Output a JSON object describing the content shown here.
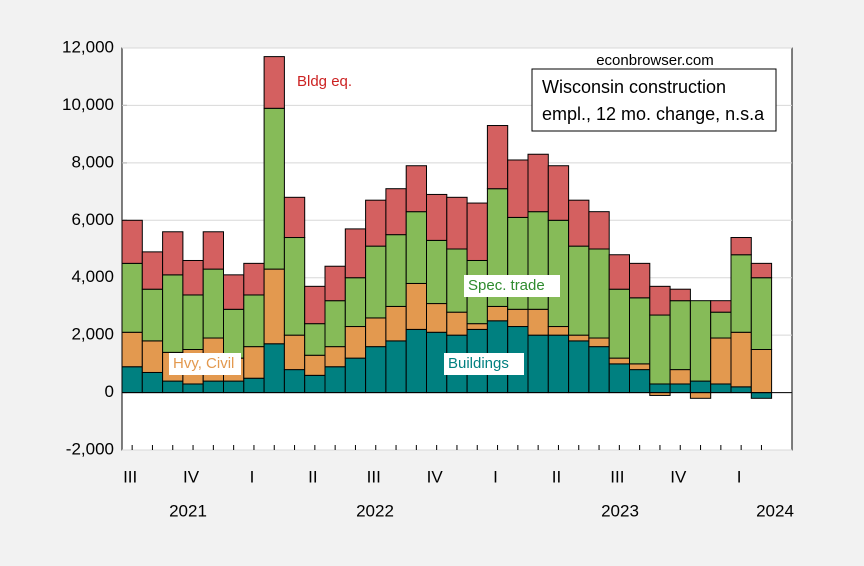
{
  "chart_data": {
    "type": "stacked-bar",
    "title": [
      "Wisconsin construction",
      "empl., 12 mo. change, n.s.a"
    ],
    "source": "econbrowser.com",
    "categories": [
      "III",
      null,
      null,
      "IV",
      null,
      null,
      "I",
      null,
      null,
      "II",
      null,
      null,
      "III",
      null,
      null,
      "IV",
      null,
      null,
      "I",
      null,
      null,
      "II",
      null,
      null,
      "III",
      null,
      null,
      "IV",
      null,
      null,
      "I",
      null
    ],
    "year_labels": [
      "2021",
      "2022",
      "2023",
      "2024"
    ],
    "series": [
      {
        "name": "Buildings",
        "color": "#008080",
        "label_color": "#008080",
        "values": [
          900,
          700,
          400,
          300,
          400,
          400,
          500,
          1700,
          800,
          600,
          900,
          1200,
          1600,
          1800,
          2200,
          2100,
          2000,
          2200,
          2500,
          2300,
          2000,
          2000,
          1800,
          1600,
          1000,
          800,
          300,
          300,
          400,
          300,
          200,
          -200
        ]
      },
      {
        "name": "Hvy, Civil",
        "color": "#e3994f",
        "label_color": "#e3994f",
        "values": [
          1200,
          1100,
          1000,
          1200,
          1500,
          800,
          1100,
          2600,
          1200,
          700,
          700,
          1100,
          1000,
          1200,
          1600,
          1000,
          800,
          200,
          500,
          600,
          900,
          300,
          200,
          300,
          200,
          200,
          -100,
          500,
          -200,
          1600,
          1900,
          1500
        ]
      },
      {
        "name": "Spec. trade",
        "color": "#86bb58",
        "label_color": "#2e8b2e",
        "values": [
          2400,
          1800,
          2700,
          1900,
          2400,
          1700,
          1800,
          5600,
          3400,
          1100,
          1600,
          1700,
          2500,
          2500,
          2500,
          2200,
          2200,
          2200,
          4100,
          3200,
          3400,
          3700,
          3100,
          3100,
          2400,
          2300,
          2400,
          2400,
          2800,
          900,
          2700,
          2500
        ]
      },
      {
        "name": "Bldg eq.",
        "color": "#d46060",
        "label_color": "#cc2222",
        "values": [
          1500,
          1300,
          1500,
          1200,
          1300,
          1200,
          1100,
          1800,
          1400,
          1300,
          1200,
          1700,
          1600,
          1600,
          1600,
          1600,
          1800,
          2000,
          2200,
          2000,
          2000,
          1900,
          1600,
          1300,
          1200,
          1200,
          1000,
          400,
          0,
          400,
          600,
          500
        ]
      }
    ],
    "ylim": [
      -2000,
      12000
    ],
    "yticks": [
      {
        "value": -2000,
        "label": "-2,000"
      },
      0,
      {
        "value": 2000,
        "label": "2,000"
      },
      {
        "value": 4000,
        "label": "4,000"
      },
      {
        "value": 6000,
        "label": "6,000"
      },
      {
        "value": 8000,
        "label": "8,000"
      },
      {
        "value": 10000,
        "label": "10,000"
      },
      {
        "value": 12000,
        "label": "12,000"
      }
    ],
    "grid": true
  }
}
